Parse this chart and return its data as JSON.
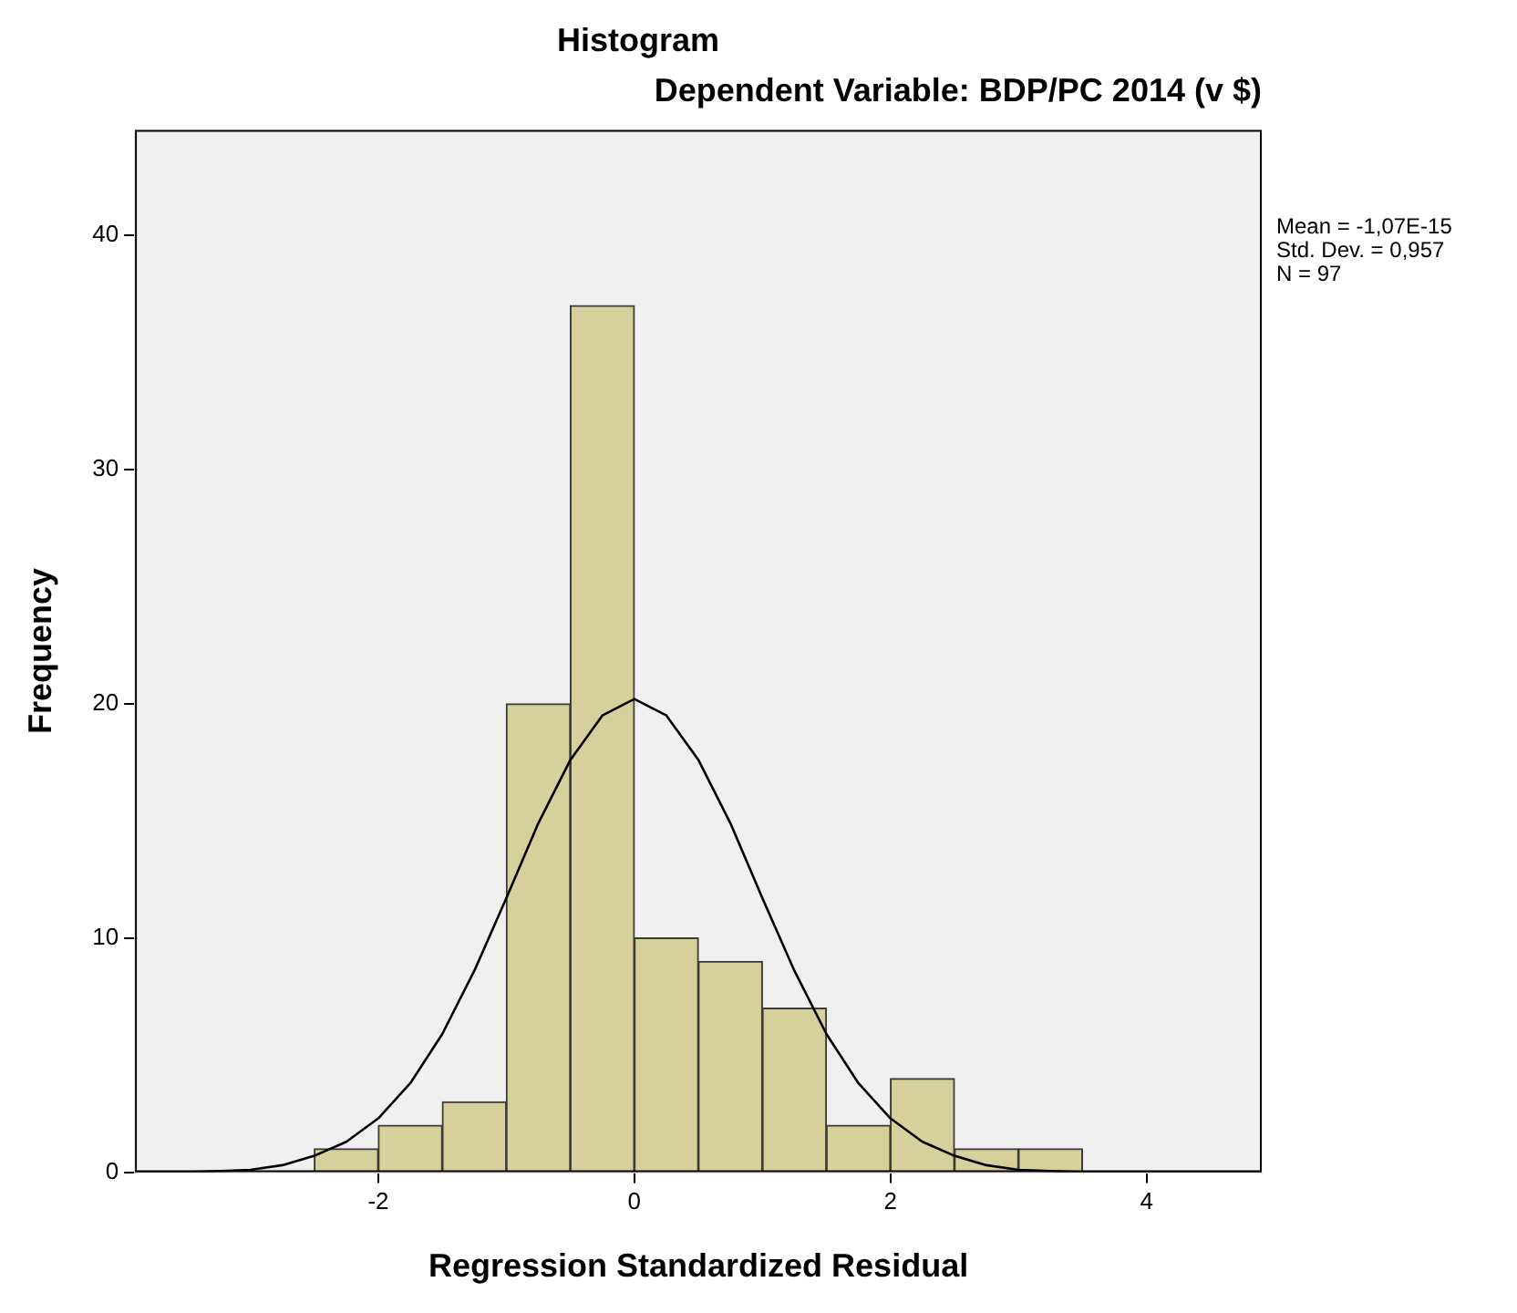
{
  "chart_data": {
    "type": "histogram",
    "title": "Histogram",
    "subtitle": "Dependent Variable: BDP/PC 2014 (v $)",
    "xlabel": "Regression Standardized Residual",
    "ylabel": "Frequency",
    "bins": [
      -2.5,
      -2,
      -1.5,
      -1,
      -0.5,
      0,
      0.5,
      1,
      1.5,
      2,
      2.5,
      3,
      3.5
    ],
    "values": [
      1,
      2,
      3,
      20,
      37,
      10,
      9,
      7,
      2,
      4,
      1,
      1
    ],
    "color": "#d5d09c",
    "series": [
      {
        "type": "line",
        "color": "#000000",
        "x": [
          -3.9,
          -3.5,
          -3,
          -2.75,
          -2.5,
          -2.25,
          -2,
          -1.75,
          -1.5,
          -1.25,
          -1,
          -0.75,
          -0.5,
          -0.25,
          0,
          0.25,
          0.5,
          0.75,
          1,
          1.25,
          1.5,
          1.75,
          2,
          2.25,
          2.5,
          2.75,
          3,
          3.5,
          4,
          4.9
        ],
        "values": [
          0,
          0,
          0.1,
          0.3,
          0.7,
          1.3,
          2.3,
          3.8,
          5.9,
          8.6,
          11.7,
          14.9,
          17.6,
          19.5,
          20.2,
          19.5,
          17.6,
          14.9,
          11.7,
          8.6,
          5.9,
          3.8,
          2.3,
          1.3,
          0.7,
          0.3,
          0.1,
          0,
          0,
          0
        ]
      }
    ],
    "xlim": [
      -3.9,
      4.9
    ],
    "xticks": [
      -2,
      0,
      2,
      4
    ],
    "ylim": [
      0,
      44.5
    ],
    "yticks": [
      0,
      10,
      20,
      30,
      40
    ],
    "grid": false,
    "legend": false,
    "marker": "none",
    "line_style": "solid",
    "annotations": [
      "Mean = -1,07E-15",
      "Std. Dev. = 0,957",
      "N = 97"
    ]
  }
}
